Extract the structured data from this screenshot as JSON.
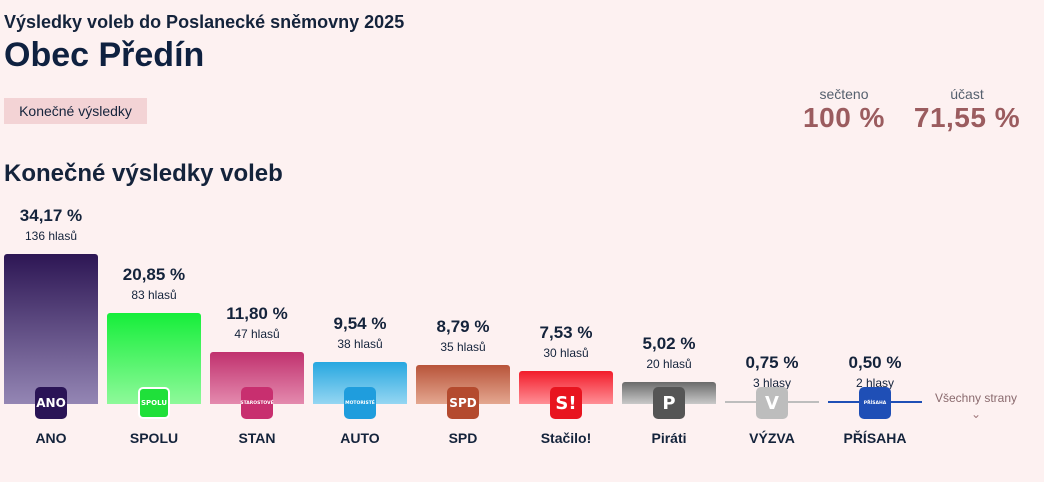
{
  "header": {
    "supertitle": "Výsledky voleb do Poslanecké sněmovny 2025",
    "title": "Obec Předín",
    "badge": "Konečné výsledky"
  },
  "stats": {
    "counted_label": "sečteno",
    "counted_value": "100 %",
    "turnout_label": "účast",
    "turnout_value": "71,55 %"
  },
  "section_title": "Konečné výsledky voleb",
  "more_link": {
    "label": "Všechny strany",
    "chevron": "chevron-down-icon"
  },
  "colors": {
    "background": "#fdf1f1",
    "accent": "#9b5c5f"
  },
  "chart_data": {
    "type": "bar",
    "title": "Konečné výsledky voleb",
    "unit": "%",
    "categories": [
      "ANO",
      "SPOLU",
      "STAN",
      "AUTO",
      "SPD",
      "Stačilo!",
      "Piráti",
      "VÝZVA",
      "PŘÍSAHA"
    ],
    "values": [
      34.17,
      20.85,
      11.8,
      9.54,
      8.79,
      7.53,
      5.02,
      0.75,
      0.5
    ],
    "parties": [
      {
        "name": "ANO",
        "percent": "34,17 %",
        "votes": "136 hlasů",
        "value": 34.17,
        "color_top": "#2d1654",
        "color_bottom": "#9486b4",
        "logo_text": "ANO",
        "logo_bg": "#2a1456"
      },
      {
        "name": "SPOLU",
        "percent": "20,85 %",
        "votes": "83 hlasů",
        "value": 20.85,
        "color_top": "#16ee3a",
        "color_bottom": "#8ef99a",
        "logo_text": "SPOLU",
        "logo_bg": "#1fe03a"
      },
      {
        "name": "STAN",
        "percent": "11,80 %",
        "votes": "47 hlasů",
        "value": 11.8,
        "color_top": "#c0316e",
        "color_bottom": "#e48aae",
        "logo_text": "STAROSTOVÉ",
        "logo_bg": "#c82f6f"
      },
      {
        "name": "AUTO",
        "percent": "9,54 %",
        "votes": "38 hlasů",
        "value": 9.54,
        "color_top": "#27a7e0",
        "color_bottom": "#95d6f2",
        "logo_text": "MOTORISTÉ",
        "logo_bg": "#1f9ddd"
      },
      {
        "name": "SPD",
        "percent": "8,79 %",
        "votes": "35 hlasů",
        "value": 8.79,
        "color_top": "#b8543a",
        "color_bottom": "#e4a790",
        "logo_text": "SPD",
        "logo_bg": "#b44a2e"
      },
      {
        "name": "Stačilo!",
        "percent": "7,53 %",
        "votes": "30 hlasů",
        "value": 7.53,
        "color_top": "#f21c2a",
        "color_bottom": "#ff8f96",
        "logo_text": "S!",
        "logo_bg": "#e8141f"
      },
      {
        "name": "Piráti",
        "percent": "5,02 %",
        "votes": "20 hlasů",
        "value": 5.02,
        "color_top": "#6a6a6a",
        "color_bottom": "#c9c9c9",
        "logo_text": "P",
        "logo_bg": "#555555"
      },
      {
        "name": "VÝZVA",
        "percent": "0,75 %",
        "votes": "3 hlasy",
        "value": 0.75,
        "color_top": "#bdbdbd",
        "color_bottom": "#bdbdbd",
        "logo_text": "V",
        "logo_bg": "#bdbdbd"
      },
      {
        "name": "PŘÍSAHA",
        "percent": "0,50 %",
        "votes": "2 hlasy",
        "value": 0.5,
        "color_top": "#1f4fb6",
        "color_bottom": "#1f4fb6",
        "logo_text": "PŘÍSAHA",
        "logo_bg": "#1f4fb6"
      }
    ]
  }
}
